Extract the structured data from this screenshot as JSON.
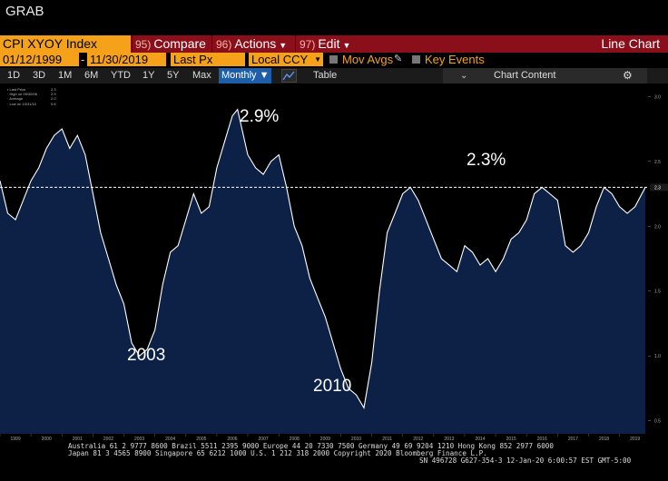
{
  "screen_label": "GRAB",
  "toolbar": {
    "ticker": "CPI XYOY Index",
    "compare": {
      "num": "95)",
      "label": "Compare"
    },
    "actions": {
      "num": "96)",
      "label": "Actions"
    },
    "edit": {
      "num": "97)",
      "label": "Edit"
    },
    "view_title": "Line Chart"
  },
  "settings": {
    "start_date": "01/12/1999",
    "end_date": "11/30/2019",
    "field": "Last Px",
    "currency": "Local CCY",
    "mov_avgs": "Mov Avgs",
    "key_events": "Key Events"
  },
  "periods": {
    "items": [
      "1D",
      "3D",
      "1M",
      "6M",
      "YTD",
      "1Y",
      "5Y",
      "Max"
    ],
    "frequency": "Monthly",
    "table": "Table",
    "chart_content": "Chart Content"
  },
  "legend": {
    "last_price": {
      "label": "Last Price",
      "value": "2.3"
    },
    "high": {
      "label": "High on 09/30/06",
      "value": "2.9"
    },
    "average": {
      "label": "Average",
      "value": "2.0"
    },
    "low": {
      "label": "Low on 10/31/10",
      "value": "0.6"
    }
  },
  "annotations": {
    "high": "2.9%",
    "last": "2.3%",
    "low_2003": "2003",
    "low_2010": "2010"
  },
  "last_value_label": "2.3",
  "colors": {
    "line": "#ffffff",
    "fill": "#0d2147",
    "accent": "#f5a11a",
    "menu_bar": "#8b0f1a"
  },
  "chart_data": {
    "type": "area",
    "title": "",
    "xlabel": "",
    "ylabel": "",
    "ylim": [
      0.4,
      3.1
    ],
    "yticks": [
      "3.0",
      "2.5",
      "2.0",
      "1.5",
      "1.0",
      "0.5"
    ],
    "xticks": [
      "1999",
      "2000",
      "2001",
      "2002",
      "2003",
      "2004",
      "2005",
      "2006",
      "2007",
      "2008",
      "2009",
      "2010",
      "2011",
      "2012",
      "2013",
      "2014",
      "2015",
      "2016",
      "2017",
      "2018",
      "2019"
    ],
    "reference_line": 2.3,
    "series": [
      {
        "x": [
          "1999-01",
          "1999-04",
          "1999-07",
          "1999-10",
          "2000-01",
          "2000-04",
          "2000-07",
          "2000-10",
          "2001-01",
          "2001-04",
          "2001-07",
          "2001-10",
          "2002-01",
          "2002-04",
          "2002-07",
          "2002-10",
          "2003-01",
          "2003-04",
          "2003-07",
          "2003-10",
          "2004-01",
          "2004-04",
          "2004-07",
          "2004-10",
          "2005-01",
          "2005-04",
          "2005-07",
          "2005-10",
          "2006-01",
          "2006-04",
          "2006-07",
          "2006-09",
          "2007-01",
          "2007-04",
          "2007-07",
          "2007-10",
          "2008-01",
          "2008-04",
          "2008-07",
          "2008-10",
          "2009-01",
          "2009-04",
          "2009-07",
          "2009-10",
          "2010-01",
          "2010-04",
          "2010-07",
          "2010-10",
          "2011-01",
          "2011-04",
          "2011-07",
          "2011-10",
          "2012-01",
          "2012-04",
          "2012-07",
          "2012-10",
          "2013-01",
          "2013-04",
          "2013-07",
          "2013-10",
          "2014-01",
          "2014-04",
          "2014-07",
          "2014-10",
          "2015-01",
          "2015-04",
          "2015-07",
          "2015-10",
          "2016-01",
          "2016-04",
          "2016-07",
          "2016-10",
          "2017-01",
          "2017-04",
          "2017-07",
          "2017-10",
          "2018-01",
          "2018-04",
          "2018-07",
          "2018-10",
          "2019-01",
          "2019-04",
          "2019-07",
          "2019-11"
        ],
        "values": [
          2.35,
          2.1,
          2.05,
          2.2,
          2.35,
          2.45,
          2.6,
          2.7,
          2.75,
          2.6,
          2.7,
          2.55,
          2.25,
          1.95,
          1.75,
          1.55,
          1.4,
          1.1,
          1.0,
          1.05,
          1.2,
          1.55,
          1.8,
          1.85,
          2.05,
          2.25,
          2.1,
          2.15,
          2.45,
          2.65,
          2.85,
          2.9,
          2.55,
          2.45,
          2.4,
          2.5,
          2.55,
          2.3,
          2.0,
          1.85,
          1.6,
          1.45,
          1.3,
          1.1,
          0.9,
          0.75,
          0.7,
          0.6,
          0.95,
          1.5,
          1.95,
          2.1,
          2.25,
          2.3,
          2.2,
          2.05,
          1.9,
          1.75,
          1.7,
          1.65,
          1.85,
          1.8,
          1.7,
          1.75,
          1.65,
          1.75,
          1.9,
          1.95,
          2.05,
          2.25,
          2.3,
          2.25,
          2.2,
          1.85,
          1.8,
          1.85,
          1.95,
          2.15,
          2.3,
          2.25,
          2.15,
          2.1,
          2.15,
          2.3
        ]
      }
    ]
  },
  "footer": {
    "line1": "Australia 61 2 9777 8600  Brazil 5511 2395 9000  Europe 44 20 7330 7500  Germany 49 69 9204 1210  Hong Kong 852 2977 6000",
    "line2": "Japan 81 3 4565 8900        Singapore 65 6212 1000        U.S. 1 212 318 2000           Copyright 2020 Bloomberg Finance L.P.",
    "line3": "SN 496728 G627-354-3  12-Jan-20  6:00:57 EST  GMT-5:00"
  }
}
